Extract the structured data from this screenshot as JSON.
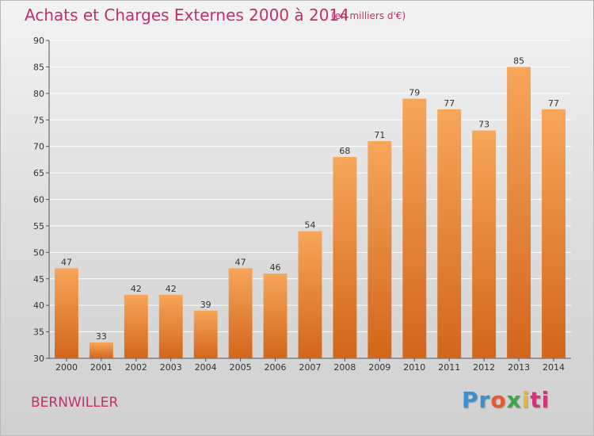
{
  "title": "Achats et Charges Externes 2000 à 2014",
  "subtitle": "(en milliers d'€)",
  "commune": "BERNWILLER",
  "logo": {
    "p1": "Pr",
    "p2": "o",
    "p3": "x",
    "p4": "i",
    "p5": "ti"
  },
  "colors": {
    "bar_top": "#f7a65a",
    "bar_bottom": "#d2661a",
    "grid": "#ffffff",
    "title": "#c0306a"
  },
  "chart_data": {
    "type": "bar",
    "categories": [
      "2000",
      "2001",
      "2002",
      "2003",
      "2004",
      "2005",
      "2006",
      "2007",
      "2008",
      "2009",
      "2010",
      "2011",
      "2012",
      "2013",
      "2014"
    ],
    "values": [
      47,
      33,
      42,
      42,
      39,
      47,
      46,
      54,
      68,
      71,
      79,
      77,
      73,
      85,
      77
    ],
    "ylim": [
      30,
      90
    ],
    "yticks": [
      30,
      35,
      40,
      45,
      50,
      55,
      60,
      65,
      70,
      75,
      80,
      85,
      90
    ],
    "grid": true,
    "title": "Achats et Charges Externes 2000 à 2014",
    "subtitle": "(en milliers d'€)",
    "xlabel": "",
    "ylabel": ""
  }
}
